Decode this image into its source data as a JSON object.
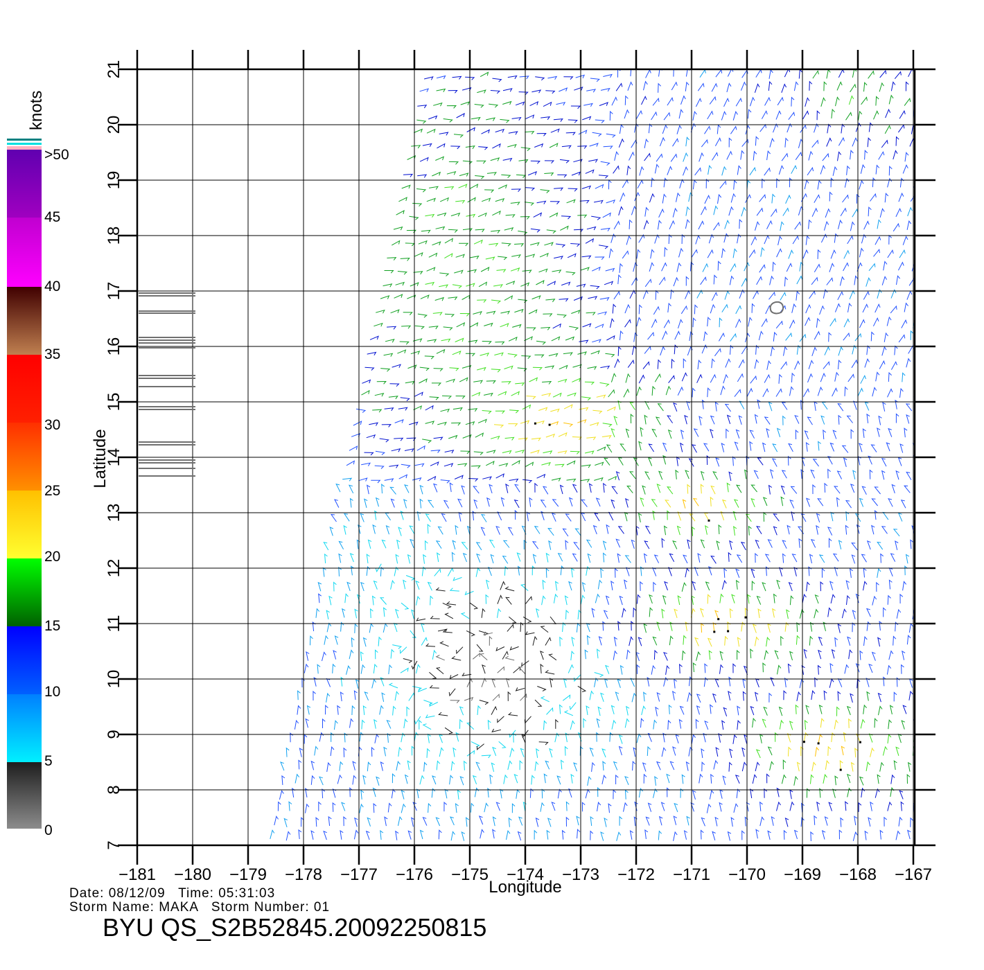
{
  "map": {
    "x_axis_label": "Longitude",
    "y_axis_label": "Latitude",
    "x_ticks": [
      "−181",
      "−180",
      "−179",
      "−178",
      "−177",
      "−176",
      "−175",
      "−174",
      "−173",
      "−172",
      "−171",
      "−170",
      "−169",
      "−168",
      "−167"
    ],
    "y_ticks": [
      "7",
      "8",
      "9",
      "10",
      "11",
      "12",
      "13",
      "14",
      "15",
      "16",
      "17",
      "18",
      "19",
      "20",
      "21"
    ],
    "lon_range": [
      -181,
      -166.5
    ],
    "lat_range": [
      7,
      21
    ]
  },
  "colorbar": {
    "unit": "knots",
    "labels": [
      ">50",
      "45",
      "40",
      "35",
      "30",
      "25",
      "20",
      "15",
      "10",
      "5",
      "0"
    ],
    "colors": {
      "0_5": [
        "#8c8c8c",
        "#1e1e1e"
      ],
      "5_10": [
        "#00f0ff",
        "#0080ff"
      ],
      "10_15": [
        "#0060ff",
        "#0000ff"
      ],
      "15_20": [
        "#006000",
        "#00ff00"
      ],
      "20_25": [
        "#ffff30",
        "#ffc000"
      ],
      "25_30": [
        "#ff9000",
        "#ff3000"
      ],
      "30_35": [
        "#ff2000",
        "#ff0000"
      ],
      "35_40": [
        "#c08050",
        "#400000"
      ],
      "40_45": [
        "#ff00ff",
        "#c000d0"
      ],
      "45_50": [
        "#a000c0",
        "#6000b0"
      ]
    }
  },
  "footer": {
    "date_line": "Date: 08/12/09   Time: 05:31:03",
    "storm_line": "Storm Name: MAKA   Storm Number: 01",
    "file_id": "BYU QS_S2B52845.20092250815"
  }
}
